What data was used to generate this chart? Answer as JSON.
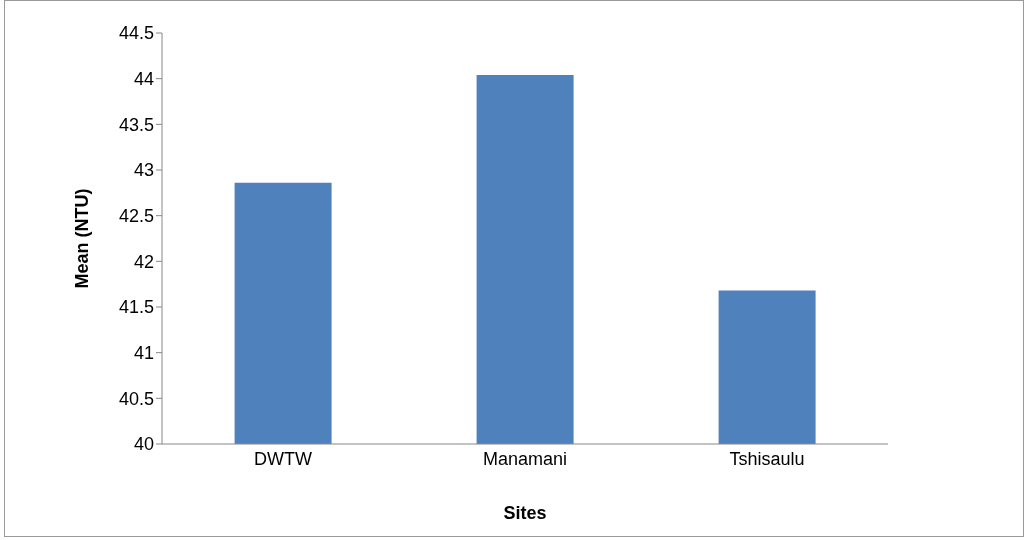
{
  "chart_data": {
    "type": "bar",
    "xlabel": "Sites",
    "ylabel": "Mean (NTU)",
    "categories": [
      "DWTW",
      "Manamani",
      "Tshisaulu"
    ],
    "values": [
      42.86,
      44.04,
      41.68
    ],
    "color": "#4f81bd",
    "ylim": [
      40,
      44.5
    ],
    "yticks": [
      40,
      40.5,
      41,
      41.5,
      42,
      42.5,
      43,
      43.5,
      44,
      44.5
    ],
    "grid": false,
    "legend": false
  }
}
